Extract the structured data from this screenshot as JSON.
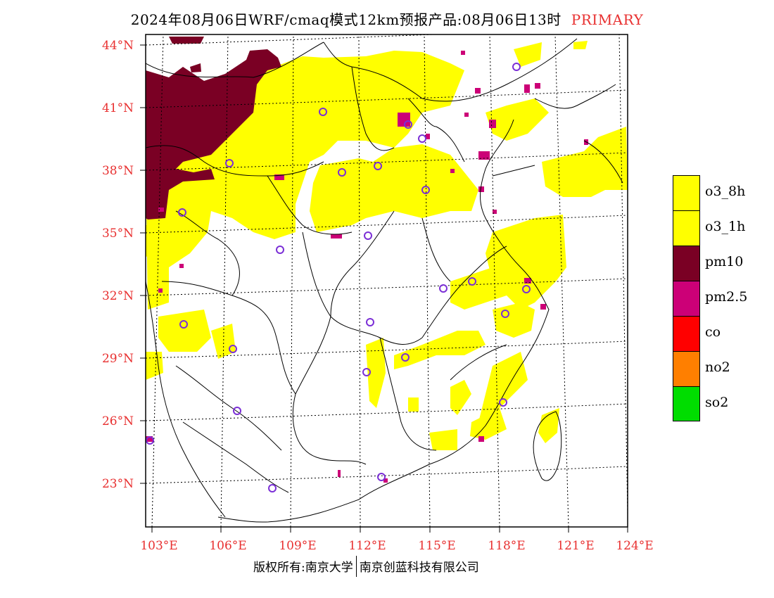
{
  "title": {
    "main": "2024年08月06日WRF/cmaq模式12km预报产品:08月06日13时",
    "tag": "PRIMARY"
  },
  "axes": {
    "latitudes": [
      "44°N",
      "41°N",
      "38°N",
      "35°N",
      "32°N",
      "29°N",
      "26°N",
      "23°N"
    ],
    "longitudes": [
      "103°E",
      "106°E",
      "109°E",
      "112°E",
      "115°E",
      "118°E",
      "121°E",
      "124°E"
    ]
  },
  "legend": [
    {
      "label": "o3_8h",
      "color": "#ffff00"
    },
    {
      "label": "o3_1h",
      "color": "#ffff00"
    },
    {
      "label": "pm10",
      "color": "#7a0024"
    },
    {
      "label": "pm2.5",
      "color": "#cc0077"
    },
    {
      "label": "co",
      "color": "#ff0000"
    },
    {
      "label": "no2",
      "color": "#ff7f00"
    },
    {
      "label": "so2",
      "color": "#00dd00"
    }
  ],
  "footer": {
    "left": "版权所有:南京大学",
    "right": "南京创蓝科技有限公司"
  },
  "colors": {
    "o3": "#ffff00",
    "pm10": "#7a0024",
    "pm25": "#cc0077",
    "axis_text": "#e83030",
    "station": "#7b2fd6"
  }
}
